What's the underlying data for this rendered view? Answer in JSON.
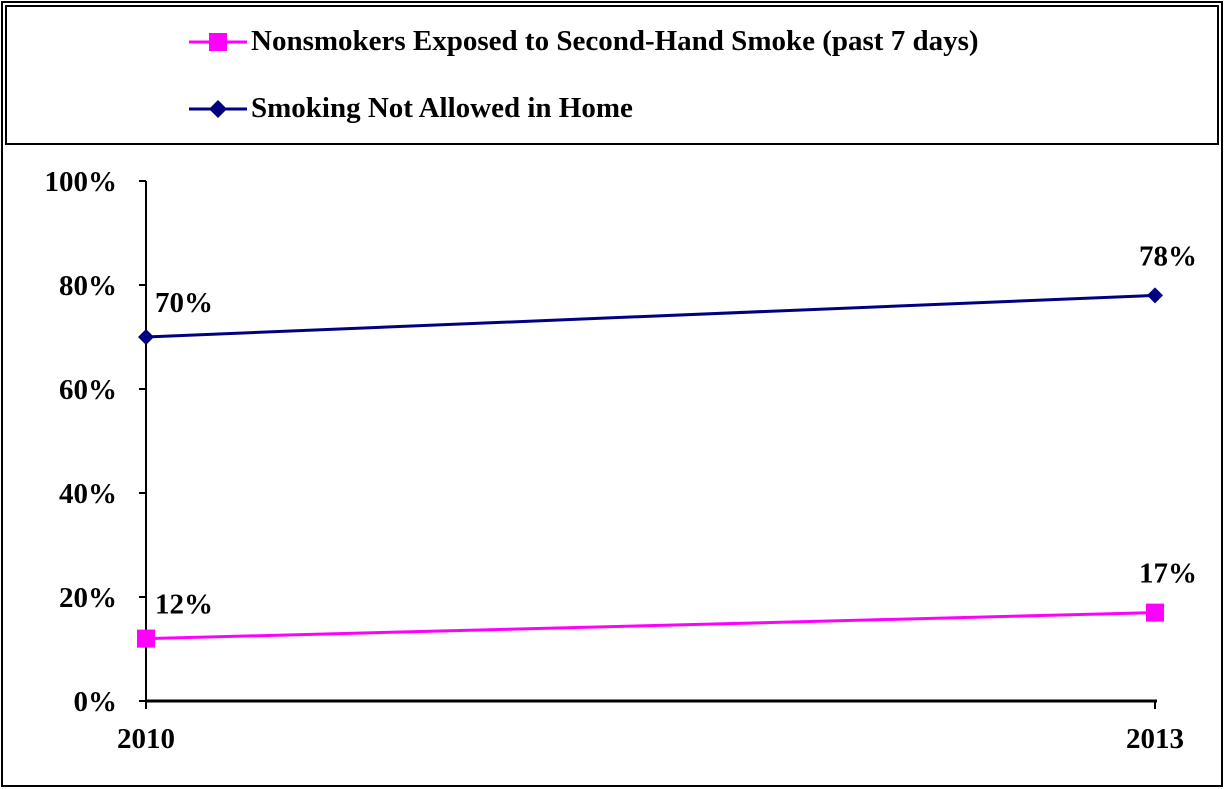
{
  "chart_data": {
    "type": "line",
    "title": "",
    "xlabel": "",
    "ylabel": "",
    "categories": [
      "2010",
      "2013"
    ],
    "ylim": [
      0,
      100
    ],
    "y_ticks": [
      "0%",
      "20%",
      "40%",
      "60%",
      "80%",
      "100%"
    ],
    "legend_position": "top",
    "grid": false,
    "series": [
      {
        "name": "Nonsmokers Exposed to Second-Hand Smoke (past 7 days)",
        "values": [
          12,
          17
        ],
        "labels": [
          "12%",
          "17%"
        ],
        "color": "#FF00FF",
        "marker": "square"
      },
      {
        "name": "Smoking Not Allowed in Home",
        "values": [
          70,
          78
        ],
        "labels": [
          "70%",
          "78%"
        ],
        "color": "#000080",
        "marker": "diamond"
      }
    ]
  }
}
